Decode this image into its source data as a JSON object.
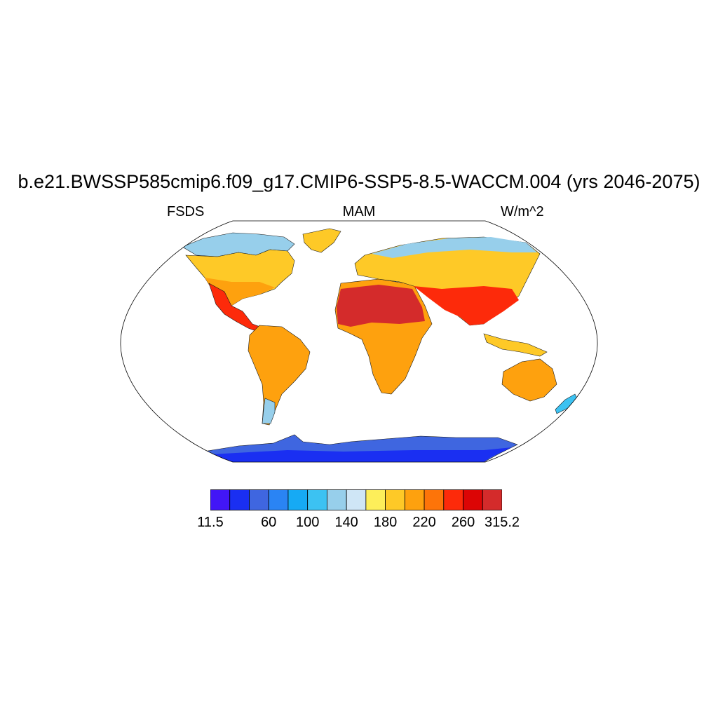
{
  "title": "b.e21.BWSSP585cmip6.f09_g17.CMIP6-SSP5-8.5-WACCM.004 (yrs 2046-2075)",
  "left_label": "FSDS",
  "center_label": "MAM",
  "right_label": "W/m^2",
  "colorbar": {
    "colors": [
      "#4216f6",
      "#1a2ff2",
      "#3f66e0",
      "#2a84f4",
      "#16aaf4",
      "#3cc2f2",
      "#97cfeb",
      "#cfe6f6",
      "#fdee5a",
      "#fec927",
      "#fea10e",
      "#fd7409",
      "#fd2a0a",
      "#dc0505",
      "#d42b2b"
    ],
    "labels": [
      {
        "text": "11.5",
        "edge": 0
      },
      {
        "text": "60",
        "edge": 3
      },
      {
        "text": "100",
        "edge": 5
      },
      {
        "text": "140",
        "edge": 7
      },
      {
        "text": "180",
        "edge": 9
      },
      {
        "text": "220",
        "edge": 11
      },
      {
        "text": "260",
        "edge": 13
      },
      {
        "text": "315.2",
        "edge": 15
      }
    ]
  },
  "map_fill": {
    "north_america": "#fec927",
    "north_america_south": "#fea10e",
    "greenland": "#fec927",
    "arctic": "#97cfeb",
    "central_america": "#fd2a0a",
    "south_america": "#fea10e",
    "south_america_tip": "#97cfeb",
    "africa": "#fea10e",
    "sahara": "#d42b2b",
    "eurasia": "#fec927",
    "asia_south": "#fd2a0a",
    "australia": "#fea10e",
    "indonesia": "#fec927",
    "new_zealand": "#3cc2f2",
    "antarctica_edge": "#3f66e0",
    "antarctica_core": "#1a2ff2"
  }
}
